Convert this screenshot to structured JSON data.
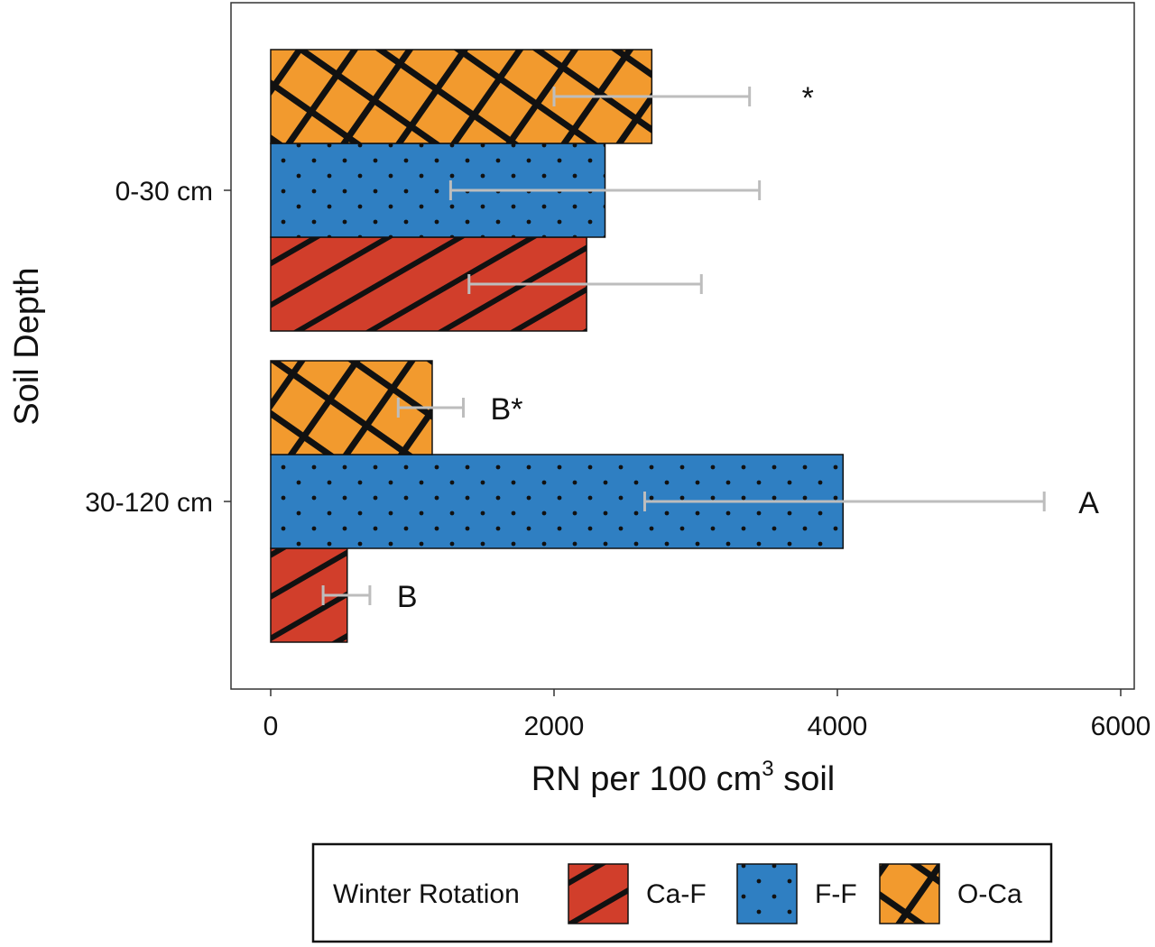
{
  "chart_data": {
    "type": "bar",
    "orientation": "horizontal",
    "categories": [
      "0-30 cm",
      "30-120 cm"
    ],
    "series": [
      {
        "name": "Ca-F",
        "color": "#d13e2b",
        "pattern": "diagonal-stripes",
        "values": [
          2230,
          540
        ],
        "error_low": [
          1400,
          370
        ],
        "error_high": [
          3040,
          700
        ]
      },
      {
        "name": "F-F",
        "color": "#2f7fc2",
        "pattern": "dots",
        "values": [
          2360,
          4040
        ],
        "error_low": [
          1270,
          2640
        ],
        "error_high": [
          3450,
          5460
        ]
      },
      {
        "name": "O-Ca",
        "color": "#f29a2e",
        "pattern": "crosshatch",
        "values": [
          2690,
          1140
        ],
        "error_low": [
          2000,
          900
        ],
        "error_high": [
          3380,
          1360
        ]
      }
    ],
    "annotations": [
      {
        "category": "0-30 cm",
        "series": "O-Ca",
        "text": "*"
      },
      {
        "category": "30-120 cm",
        "series": "O-Ca",
        "text": "B*"
      },
      {
        "category": "30-120 cm",
        "series": "F-F",
        "text": "A"
      },
      {
        "category": "30-120 cm",
        "series": "Ca-F",
        "text": "B"
      }
    ],
    "xlabel_main": "RN per 100 cm",
    "xlabel_sup": "3",
    "xlabel_tail": " soil",
    "ylabel": "Soil Depth",
    "xlim": [
      0,
      6000
    ],
    "xticks": [
      0,
      2000,
      4000,
      6000
    ],
    "xtick_labels": [
      "0",
      "2000",
      "4000",
      "6000"
    ],
    "grid": false,
    "legend": {
      "title": "Winter Rotation",
      "position": "bottom"
    }
  }
}
